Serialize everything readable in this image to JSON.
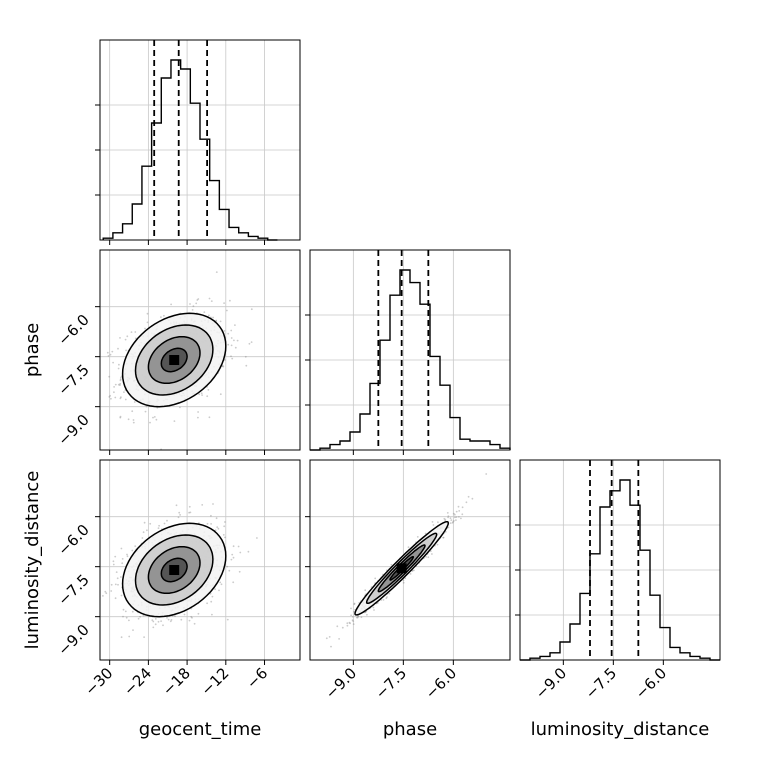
{
  "chart_data": {
    "type": "corner",
    "parameters": [
      "geocent_time",
      "phase",
      "luminosity_distance"
    ],
    "axes": {
      "geocent_time": {
        "lim": [
          -31.5,
          -0.5
        ],
        "ticks": [
          -30,
          -24,
          -18,
          -12,
          -6
        ],
        "tick_labels": [
          "−30",
          "−24",
          "−18",
          "−12",
          "−6"
        ]
      },
      "phase": {
        "lim": [
          -10.3,
          -4.3
        ],
        "ticks": [
          -9.0,
          -7.5,
          -6.0
        ],
        "tick_labels": [
          "−9.0",
          "−7.5",
          "−6.0"
        ]
      },
      "luminosity_distance": {
        "lim": [
          -10.3,
          -4.3
        ],
        "ticks": [
          -9.0,
          -7.5,
          -6.0
        ],
        "tick_labels": [
          "−9.0",
          "−7.5",
          "−6.0"
        ]
      }
    },
    "grid": true,
    "marginals": [
      {
        "parameter": "geocent_time",
        "bin_edges": [
          -31.0,
          -29.5,
          -28.0,
          -26.5,
          -25.0,
          -23.5,
          -22.0,
          -20.5,
          -19.0,
          -17.5,
          -16.0,
          -14.5,
          -13.0,
          -11.5,
          -10.0,
          -8.5,
          -7.0,
          -5.5,
          -4.0
        ],
        "heights": [
          0.01,
          0.04,
          0.09,
          0.2,
          0.41,
          0.65,
          0.9,
          1.0,
          0.95,
          0.76,
          0.56,
          0.33,
          0.17,
          0.07,
          0.04,
          0.02,
          0.01,
          0.0
        ],
        "quantiles": [
          -23.1,
          -19.3,
          -14.9
        ],
        "y_ticks": [
          0.25,
          0.5,
          0.75
        ]
      },
      {
        "parameter": "phase",
        "bin_edges": [
          -10.3,
          -10.0,
          -9.7,
          -9.4,
          -9.1,
          -8.8,
          -8.5,
          -8.2,
          -7.9,
          -7.6,
          -7.3,
          -7.0,
          -6.7,
          -6.4,
          -6.1,
          -5.8,
          -5.5,
          -5.2,
          -4.9,
          -4.6,
          -4.3
        ],
        "heights": [
          0.0,
          0.01,
          0.03,
          0.05,
          0.1,
          0.2,
          0.37,
          0.61,
          0.86,
          1.0,
          0.93,
          0.81,
          0.52,
          0.36,
          0.18,
          0.06,
          0.05,
          0.05,
          0.03,
          0.01
        ],
        "quantiles": [
          -8.25,
          -7.55,
          -6.75
        ],
        "y_ticks": [
          0.25,
          0.5,
          0.75
        ]
      },
      {
        "parameter": "luminosity_distance",
        "bin_edges": [
          -10.3,
          -10.0,
          -9.7,
          -9.4,
          -9.1,
          -8.8,
          -8.5,
          -8.2,
          -7.9,
          -7.6,
          -7.3,
          -7.0,
          -6.7,
          -6.4,
          -6.1,
          -5.8,
          -5.5,
          -5.2,
          -4.9,
          -4.6,
          -4.3
        ],
        "heights": [
          0.0,
          0.01,
          0.02,
          0.04,
          0.1,
          0.2,
          0.37,
          0.59,
          0.85,
          0.94,
          1.0,
          0.86,
          0.61,
          0.36,
          0.18,
          0.07,
          0.04,
          0.02,
          0.01,
          0.0
        ],
        "quantiles": [
          -8.2,
          -7.55,
          -6.75
        ],
        "y_ticks": [
          0.25,
          0.5,
          0.75
        ]
      }
    ],
    "joint_2d": [
      {
        "x": "geocent_time",
        "y": "phase",
        "center": [
          -20.0,
          -7.6
        ],
        "sigma": [
          4.0,
          0.7
        ],
        "rho": 0.3,
        "levels_sigma": [
          0.5,
          1.0,
          1.5,
          2.0
        ]
      },
      {
        "x": "geocent_time",
        "y": "luminosity_distance",
        "center": [
          -20.0,
          -7.6
        ],
        "sigma": [
          4.0,
          0.7
        ],
        "rho": 0.3,
        "levels_sigma": [
          0.5,
          1.0,
          1.5,
          2.0
        ]
      },
      {
        "x": "phase",
        "y": "luminosity_distance",
        "center": [
          -7.55,
          -7.55
        ],
        "sigma": [
          0.7,
          0.7
        ],
        "rho": 0.97,
        "levels_sigma": [
          0.5,
          1.0,
          1.5,
          2.0
        ]
      }
    ]
  }
}
